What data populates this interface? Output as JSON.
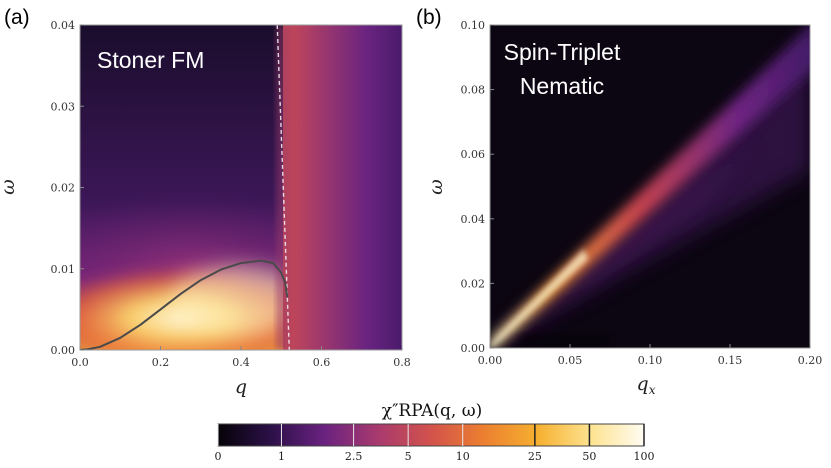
{
  "chart_data": [
    {
      "type": "heatmap",
      "panel": "(a)",
      "title": "Stoner FM",
      "xlabel": "q",
      "ylabel": "ω",
      "xlim": [
        0.0,
        0.8
      ],
      "ylim": [
        0.0,
        0.04
      ],
      "xticks": [
        "0.0",
        "0.2",
        "0.4",
        "0.6",
        "0.8"
      ],
      "yticks": [
        "0.00",
        "0.01",
        "0.02",
        "0.03",
        "0.04"
      ],
      "dispersion_curve": {
        "q": [
          0.0,
          0.02,
          0.05,
          0.1,
          0.15,
          0.2,
          0.25,
          0.3,
          0.35,
          0.4,
          0.45,
          0.48,
          0.5,
          0.51,
          0.515
        ],
        "omega": [
          0.0,
          0.0001,
          0.0004,
          0.0015,
          0.0031,
          0.005,
          0.0069,
          0.0086,
          0.0099,
          0.0107,
          0.011,
          0.0107,
          0.0095,
          0.0082,
          0.0065
        ]
      },
      "continuum_edge": {
        "q": [
          0.49,
          0.52
        ],
        "omega": [
          0.04,
          0.0
        ]
      }
    },
    {
      "type": "heatmap",
      "panel": "(b)",
      "title_lines": [
        "Spin-Triplet",
        "Nematic"
      ],
      "xlabel": "q_x",
      "ylabel": "ω",
      "xlim": [
        0.0,
        0.2
      ],
      "ylim": [
        0.0,
        0.1
      ],
      "xticks": [
        "0.00",
        "0.05",
        "0.10",
        "0.15",
        "0.20"
      ],
      "yticks": [
        "0.00",
        "0.02",
        "0.04",
        "0.06",
        "0.08",
        "0.10"
      ],
      "mode_slope": 0.5
    }
  ],
  "colorbar": {
    "label": "χ″RPA(q, ω)",
    "ticks": [
      "0",
      "1",
      "2.5",
      "5",
      "10",
      "25",
      "50",
      "100"
    ],
    "colors": [
      "#050308",
      "#2c1048",
      "#6a2280",
      "#a83a6e",
      "#d2524c",
      "#ec8030",
      "#f6b030",
      "#fde390",
      "#fffcf2"
    ]
  }
}
